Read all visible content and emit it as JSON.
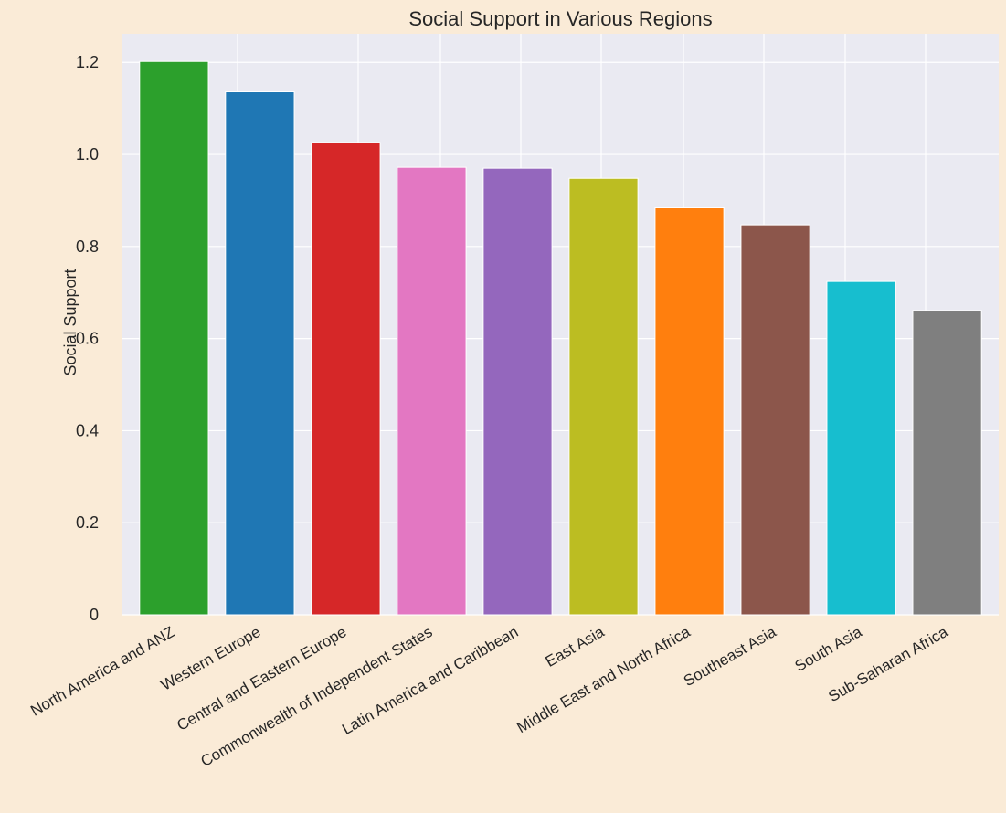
{
  "chart_data": {
    "type": "bar",
    "title": "Social Support in Various Regions",
    "xlabel": "",
    "ylabel": "Social Support",
    "categories": [
      "North America and ANZ",
      "Western Europe",
      "Central and Eastern Europe",
      "Commonwealth of Independent States",
      "Latin America and Caribbean",
      "East Asia",
      "Middle East and North Africa",
      "Southeast Asia",
      "South Asia",
      "Sub-Saharan Africa"
    ],
    "values": [
      1.202,
      1.136,
      1.026,
      0.972,
      0.97,
      0.948,
      0.884,
      0.847,
      0.724,
      0.661
    ],
    "colors": [
      "#2CA02C",
      "#1F77B4",
      "#D62728",
      "#E377C2",
      "#9467BD",
      "#BCBD22",
      "#FF7F0E",
      "#8C564B",
      "#17BECF",
      "#7F7F7F"
    ],
    "ylim": [
      0,
      1.262
    ],
    "yticks": [
      0,
      0.2,
      0.4,
      0.6,
      0.8,
      1.0,
      1.2
    ],
    "ytick_labels": [
      "0",
      "0.2",
      "0.4",
      "0.6",
      "0.8",
      "1.0",
      "1.2"
    ],
    "grid": true,
    "plot_background": "#EAEAF2",
    "figure_background": "#FAEBD7"
  }
}
